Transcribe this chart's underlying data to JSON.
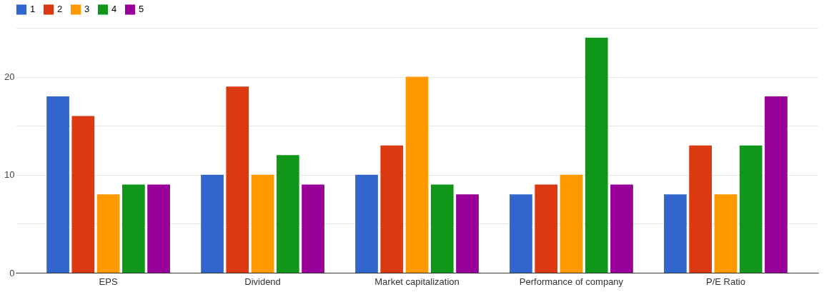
{
  "chart_data": {
    "type": "bar",
    "categories": [
      "EPS",
      "Dividend",
      "Market capitalization",
      "Performance of company",
      "P/E Ratio"
    ],
    "series": [
      {
        "name": "1",
        "color": "#3366cc",
        "values": [
          18,
          10,
          10,
          8,
          8
        ]
      },
      {
        "name": "2",
        "color": "#dc3912",
        "values": [
          16,
          19,
          13,
          9,
          13
        ]
      },
      {
        "name": "3",
        "color": "#ff9900",
        "values": [
          8,
          10,
          20,
          10,
          8
        ]
      },
      {
        "name": "4",
        "color": "#109618",
        "values": [
          9,
          12,
          9,
          24,
          13
        ]
      },
      {
        "name": "5",
        "color": "#990099",
        "values": [
          9,
          9,
          8,
          9,
          18
        ]
      }
    ],
    "ylim": [
      0,
      25
    ],
    "yticks": [
      0,
      {
        "value": 5,
        "label": null
      },
      10,
      {
        "value": 15,
        "label": null
      },
      20,
      {
        "value": 25,
        "label": null
      }
    ],
    "grid": "y",
    "legend": "top left"
  }
}
